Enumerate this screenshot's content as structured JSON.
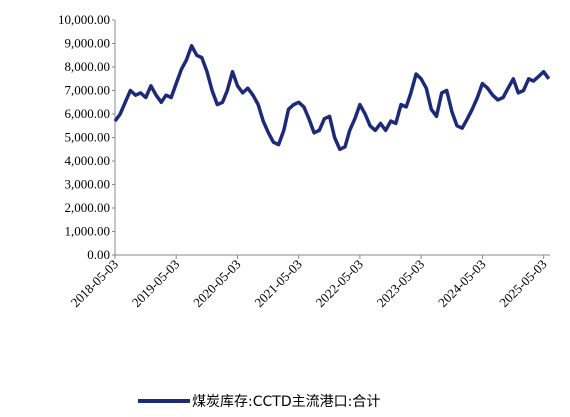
{
  "chart_data": {
    "type": "line",
    "x": [
      "2018-05-03",
      "2018-06-03",
      "2018-07-03",
      "2018-08-03",
      "2018-09-03",
      "2018-10-03",
      "2018-11-03",
      "2018-12-03",
      "2019-01-03",
      "2019-02-03",
      "2019-03-03",
      "2019-04-03",
      "2019-05-03",
      "2019-06-03",
      "2019-07-03",
      "2019-08-03",
      "2019-09-03",
      "2019-10-03",
      "2019-11-03",
      "2019-12-03",
      "2020-01-03",
      "2020-02-03",
      "2020-03-03",
      "2020-04-03",
      "2020-05-03",
      "2020-06-03",
      "2020-07-03",
      "2020-08-03",
      "2020-09-03",
      "2020-10-03",
      "2020-11-03",
      "2020-12-03",
      "2021-01-03",
      "2021-02-03",
      "2021-03-03",
      "2021-04-03",
      "2021-05-03",
      "2021-06-03",
      "2021-07-03",
      "2021-08-03",
      "2021-09-03",
      "2021-10-03",
      "2021-11-03",
      "2021-12-03",
      "2022-01-03",
      "2022-02-03",
      "2022-03-03",
      "2022-04-03",
      "2022-05-03",
      "2022-06-03",
      "2022-07-03",
      "2022-08-03",
      "2022-09-03",
      "2022-10-03",
      "2022-11-03",
      "2022-12-03",
      "2023-01-03",
      "2023-02-03",
      "2023-03-03",
      "2023-04-03",
      "2023-05-03",
      "2023-06-03",
      "2023-07-03",
      "2023-08-03",
      "2023-09-03",
      "2023-10-03",
      "2023-11-03",
      "2023-12-03",
      "2024-01-03",
      "2024-02-03",
      "2024-03-03",
      "2024-04-03",
      "2024-05-03",
      "2024-06-03",
      "2024-07-03",
      "2024-08-03",
      "2024-09-03",
      "2024-10-03",
      "2024-11-03",
      "2024-12-03",
      "2025-01-03",
      "2025-02-03",
      "2025-03-03",
      "2025-04-03",
      "2025-05-03",
      "2025-06-03"
    ],
    "series": [
      {
        "name": "煤炭库存:CCTD主流港口:合计",
        "color": "#1c2a78",
        "values": [
          5700,
          6000,
          6500,
          7000,
          6800,
          6900,
          6700,
          7200,
          6800,
          6500,
          6800,
          6700,
          7300,
          7900,
          8300,
          8900,
          8500,
          8400,
          7800,
          7000,
          6400,
          6500,
          7000,
          7800,
          7200,
          6900,
          7100,
          6800,
          6400,
          5700,
          5200,
          4800,
          4700,
          5300,
          6200,
          6400,
          6500,
          6300,
          5800,
          5200,
          5300,
          5800,
          5900,
          5000,
          4500,
          4600,
          5300,
          5800,
          6400,
          6000,
          5500,
          5300,
          5600,
          5300,
          5700,
          5600,
          6400,
          6300,
          6900,
          7700,
          7500,
          7100,
          6200,
          5900,
          6900,
          7000,
          6100,
          5500,
          5400,
          5800,
          6200,
          6700,
          7300,
          7100,
          6800,
          6600,
          6700,
          7100,
          7500,
          6900,
          7000,
          7500,
          7400,
          7600,
          7800,
          7500
        ]
      }
    ],
    "xlim": [
      "2018-05-03",
      "2025-06-10"
    ],
    "xticks": [
      "2018-05-03",
      "2019-05-03",
      "2020-05-03",
      "2021-05-03",
      "2022-05-03",
      "2023-05-03",
      "2024-05-03",
      "2025-05-03"
    ],
    "ylim": [
      0,
      10000
    ],
    "yticks": [
      {
        "value": 0,
        "label": "0.00"
      },
      {
        "value": 1000,
        "label": "1,000.00"
      },
      {
        "value": 2000,
        "label": "2,000.00"
      },
      {
        "value": 3000,
        "label": "3,000.00"
      },
      {
        "value": 4000,
        "label": "4,000.00"
      },
      {
        "value": 5000,
        "label": "5,000.00"
      },
      {
        "value": 6000,
        "label": "6,000.00"
      },
      {
        "value": 7000,
        "label": "7,000.00"
      },
      {
        "value": 8000,
        "label": "8,000.00"
      },
      {
        "value": 9000,
        "label": "9,000.00"
      },
      {
        "value": 10000,
        "label": "10,000.00"
      }
    ]
  }
}
